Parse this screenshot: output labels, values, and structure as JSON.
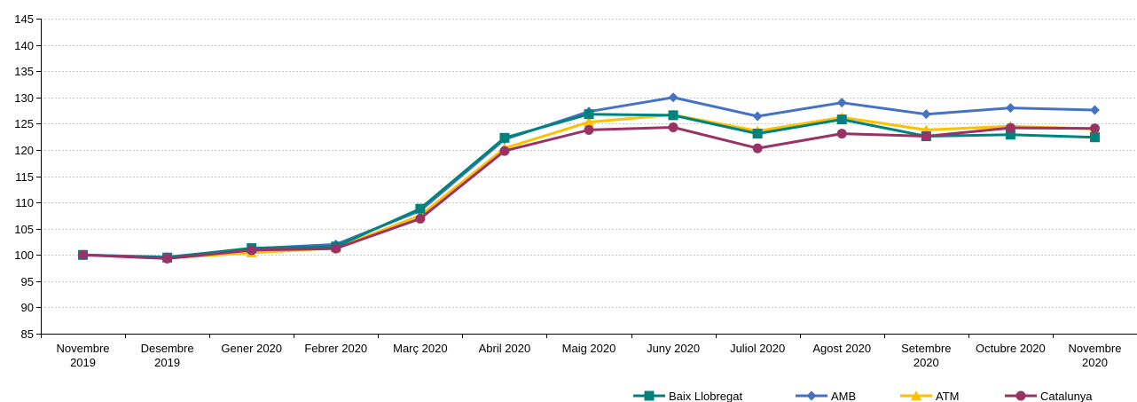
{
  "chart_data": {
    "type": "line",
    "title": "",
    "xlabel": "",
    "ylabel": "",
    "ylim": [
      85,
      145
    ],
    "ytick_step": 5,
    "grid": true,
    "legend_position": "bottom-right",
    "categories": [
      [
        "Novembre",
        "2019"
      ],
      [
        "Desembre",
        "2019"
      ],
      [
        "Gener 2020"
      ],
      [
        "Febrer 2020"
      ],
      [
        "Març 2020"
      ],
      [
        "Abril 2020"
      ],
      [
        "Maig 2020"
      ],
      [
        "Juny 2020"
      ],
      [
        "Juliol 2020"
      ],
      [
        "Agost 2020"
      ],
      [
        "Setembre",
        "2020"
      ],
      [
        "Octubre 2020"
      ],
      [
        "Novembre",
        "2020"
      ]
    ],
    "series": [
      {
        "name": "AMB",
        "color": "#4472c4",
        "marker": "diamond",
        "values": [
          100,
          99.6,
          101.2,
          102.0,
          108.4,
          122.0,
          127.3,
          130.0,
          126.4,
          129.0,
          126.8,
          128.0,
          127.6
        ]
      },
      {
        "name": "ATM",
        "color": "#ffc000",
        "marker": "triangle",
        "values": [
          100,
          99.4,
          100.4,
          101.3,
          107.5,
          120.3,
          125.3,
          126.7,
          123.6,
          126.2,
          123.8,
          124.5,
          124.0
        ]
      },
      {
        "name": "Baix Llobregat",
        "color": "#00837d",
        "marker": "square",
        "values": [
          100,
          99.5,
          101.3,
          101.6,
          108.8,
          122.3,
          126.8,
          126.6,
          123.1,
          125.8,
          122.6,
          122.9,
          122.4
        ]
      },
      {
        "name": "Catalunya",
        "color": "#993366",
        "marker": "circle",
        "values": [
          100,
          99.3,
          100.9,
          101.2,
          106.9,
          119.8,
          123.8,
          124.3,
          120.3,
          123.1,
          122.6,
          124.2,
          124.1
        ]
      }
    ],
    "legend_order": [
      "Baix Llobregat",
      "AMB",
      "ATM",
      "Catalunya"
    ]
  }
}
